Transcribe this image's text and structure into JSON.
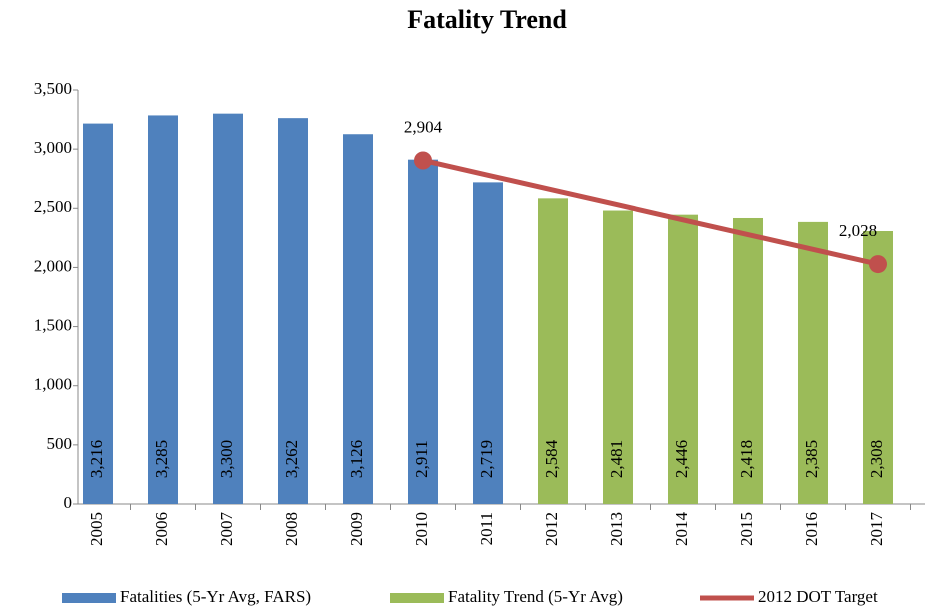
{
  "chart_data": {
    "type": "bar",
    "title": "Fatality Trend",
    "categories": [
      "2005",
      "2006",
      "2007",
      "2008",
      "2009",
      "2010",
      "2011",
      "2012",
      "2013",
      "2014",
      "2015",
      "2016",
      "2017"
    ],
    "series": [
      {
        "name": "Fatalities (5-Yr Avg, FARS)",
        "type": "bar",
        "color": "#4f81bd",
        "values": [
          3216,
          3285,
          3300,
          3262,
          3126,
          2911,
          2719,
          null,
          null,
          null,
          null,
          null,
          null
        ],
        "value_labels": [
          "3,216",
          "3,285",
          "3,300",
          "3,262",
          "3,126",
          "2,911",
          "2,719",
          null,
          null,
          null,
          null,
          null,
          null
        ]
      },
      {
        "name": "Fatality Trend (5-Yr Avg)",
        "type": "bar",
        "color": "#9bbb59",
        "values": [
          null,
          null,
          null,
          null,
          null,
          null,
          null,
          2584,
          2481,
          2446,
          2418,
          2385,
          2308
        ],
        "value_labels": [
          null,
          null,
          null,
          null,
          null,
          null,
          null,
          "2,584",
          "2,481",
          "2,446",
          "2,418",
          "2,385",
          "2,308"
        ]
      },
      {
        "name": "2012 DOT Target",
        "type": "line",
        "color": "#c0504d",
        "values": [
          null,
          null,
          null,
          null,
          null,
          2904,
          2779,
          2654,
          2529,
          2403,
          2278,
          2153,
          2028
        ],
        "value_labels": [
          null,
          null,
          null,
          null,
          null,
          "2,904",
          null,
          null,
          null,
          null,
          null,
          null,
          "2,028"
        ]
      }
    ],
    "ylim": [
      0,
      3500
    ],
    "yticks": [
      0,
      500,
      {
        "value": 1000,
        "label": "1,000"
      },
      {
        "value": 1500,
        "label": "1,500"
      },
      {
        "value": 2000,
        "label": "2,000"
      },
      {
        "value": 2500,
        "label": "2,500"
      },
      {
        "value": 3000,
        "label": "3,000"
      },
      {
        "value": 3500,
        "label": "3,500"
      }
    ]
  }
}
